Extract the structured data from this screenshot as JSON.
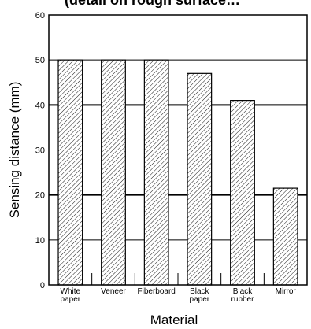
{
  "chart_data": {
    "type": "bar",
    "title": "(detail on rough surface… ",
    "categories": [
      [
        "White",
        "paper"
      ],
      [
        "Veneer"
      ],
      [
        "Fiberboard"
      ],
      [
        "Black",
        "paper"
      ],
      [
        "Black",
        "rubber"
      ],
      [
        "Mirror"
      ]
    ],
    "values": [
      50,
      50,
      50,
      47,
      41,
      21.5
    ],
    "xlabel": "Material",
    "ylabel": "Sensing distance (mm)",
    "ylim": [
      0,
      60
    ],
    "yticks": [
      0,
      10,
      20,
      30,
      40,
      50,
      60
    ],
    "grid": true,
    "bar_fill": "diagonal-hatch",
    "colors": {
      "axis": "#000000",
      "bar_stroke": "#000000",
      "hatch": "#000000",
      "background": "#ffffff"
    }
  }
}
